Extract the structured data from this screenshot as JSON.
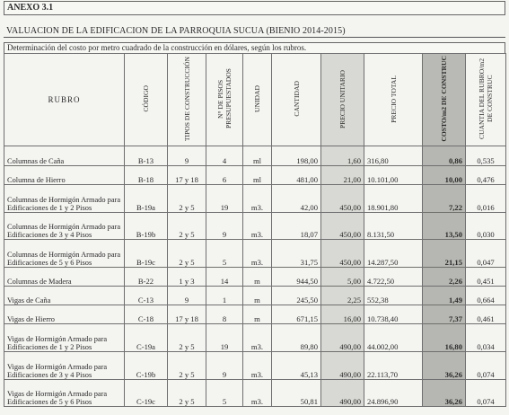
{
  "anexo": "ANEXO 3.1",
  "title": "VALUACION DE LA EDIFICACION DE LA PARROQUIA SUCUA (BIENIO 2014-2015)",
  "subtitle": "Determinación del costo por metro cuadrado de la construcción en dólares, según los rubros.",
  "headers": {
    "rubro": "RUBRO",
    "codigo": "CÓDIGO",
    "tipos": "TIPOS DE CONSTRUCCIÓN",
    "pisos": "N° DE PISOS PRESUPUESTADOS",
    "unidad": "UNIDAD",
    "cantidad": "CANTIDAD",
    "precio_unitario": "PRECIO UNITARIO",
    "precio_total": "PRECIO TOTAL",
    "costo_m2": "COSTO/m2 DE CONSTRUC",
    "cuantia": "CUANTIA DEL RUBRO/m2 DE CONSTRUC"
  },
  "rows": [
    {
      "rubro": "Columnas de Caña",
      "codigo": "B-13",
      "tipos": "9",
      "pisos": "4",
      "unidad": "ml",
      "cantidad": "198,00",
      "precio_unitario": "1,60",
      "precio_total": "316,80",
      "costo_m2": "0,86",
      "cuantia": "0,535"
    },
    {
      "rubro": "Columna de Hierro",
      "codigo": "B-18",
      "tipos": "17 y 18",
      "pisos": "6",
      "unidad": "ml",
      "cantidad": "481,00",
      "precio_unitario": "21,00",
      "precio_total": "10.101,00",
      "costo_m2": "10,00",
      "cuantia": "0,476"
    },
    {
      "rubro": "Columnas de Hormigón Armado para Edificaciones de 1 y 2 Pisos",
      "codigo": "B-19a",
      "tipos": "2 y 5",
      "pisos": "19",
      "unidad": "m3.",
      "cantidad": "42,00",
      "precio_unitario": "450,00",
      "precio_total": "18.901,80",
      "costo_m2": "7,22",
      "cuantia": "0,016"
    },
    {
      "rubro": "Columnas de Hormigón Armado para Edificaciones de 3 y 4 Pisos",
      "codigo": "B-19b",
      "tipos": "2 y 5",
      "pisos": "9",
      "unidad": "m3.",
      "cantidad": "18,07",
      "precio_unitario": "450,00",
      "precio_total": "8.131,50",
      "costo_m2": "13,50",
      "cuantia": "0,030"
    },
    {
      "rubro": "Columnas de Hormigón Armado para Edificaciones de 5 y 6 Pisos",
      "codigo": "B-19c",
      "tipos": "2 y 5",
      "pisos": "5",
      "unidad": "m3.",
      "cantidad": "31,75",
      "precio_unitario": "450,00",
      "precio_total": "14.287,50",
      "costo_m2": "21,15",
      "cuantia": "0,047"
    },
    {
      "rubro": "Columnas de Madera",
      "codigo": "B-22",
      "tipos": "1 y 3",
      "pisos": "14",
      "unidad": "m",
      "cantidad": "944,50",
      "precio_unitario": "5,00",
      "precio_total": "4.722,50",
      "costo_m2": "2,26",
      "cuantia": "0,451"
    },
    {
      "rubro": "Vigas de Caña",
      "codigo": "C-13",
      "tipos": "9",
      "pisos": "1",
      "unidad": "m",
      "cantidad": "245,50",
      "precio_unitario": "2,25",
      "precio_total": "552,38",
      "costo_m2": "1,49",
      "cuantia": "0,664"
    },
    {
      "rubro": "Vigas de Hierro",
      "codigo": "C-18",
      "tipos": "17 y 18",
      "pisos": "8",
      "unidad": "m",
      "cantidad": "671,15",
      "precio_unitario": "16,00",
      "precio_total": "10.738,40",
      "costo_m2": "7,37",
      "cuantia": "0,461"
    },
    {
      "rubro": "Vigas de Hormigón Armado para Edificaciones de 1 y 2 Pisos",
      "codigo": "C-19a",
      "tipos": "2 y 5",
      "pisos": "19",
      "unidad": "m3.",
      "cantidad": "89,80",
      "precio_unitario": "490,00",
      "precio_total": "44.002,00",
      "costo_m2": "16,80",
      "cuantia": "0,034"
    },
    {
      "rubro": "Vigas de Hormigón Armado para Edificaciones de 3 y 4 Pisos",
      "codigo": "C-19b",
      "tipos": "2 y 5",
      "pisos": "9",
      "unidad": "m3.",
      "cantidad": "45,13",
      "precio_unitario": "490,00",
      "precio_total": "22.113,70",
      "costo_m2": "36,26",
      "cuantia": "0,074"
    },
    {
      "rubro": "Vigas de Hormigón Armado para Edificaciones de 5 y 6 Pisos",
      "codigo": "C-19c",
      "tipos": "2 y 5",
      "pisos": "5",
      "unidad": "m3.",
      "cantidad": "50,81",
      "precio_unitario": "490,00",
      "precio_total": "24.896,90",
      "costo_m2": "36,26",
      "cuantia": "0,074"
    }
  ]
}
